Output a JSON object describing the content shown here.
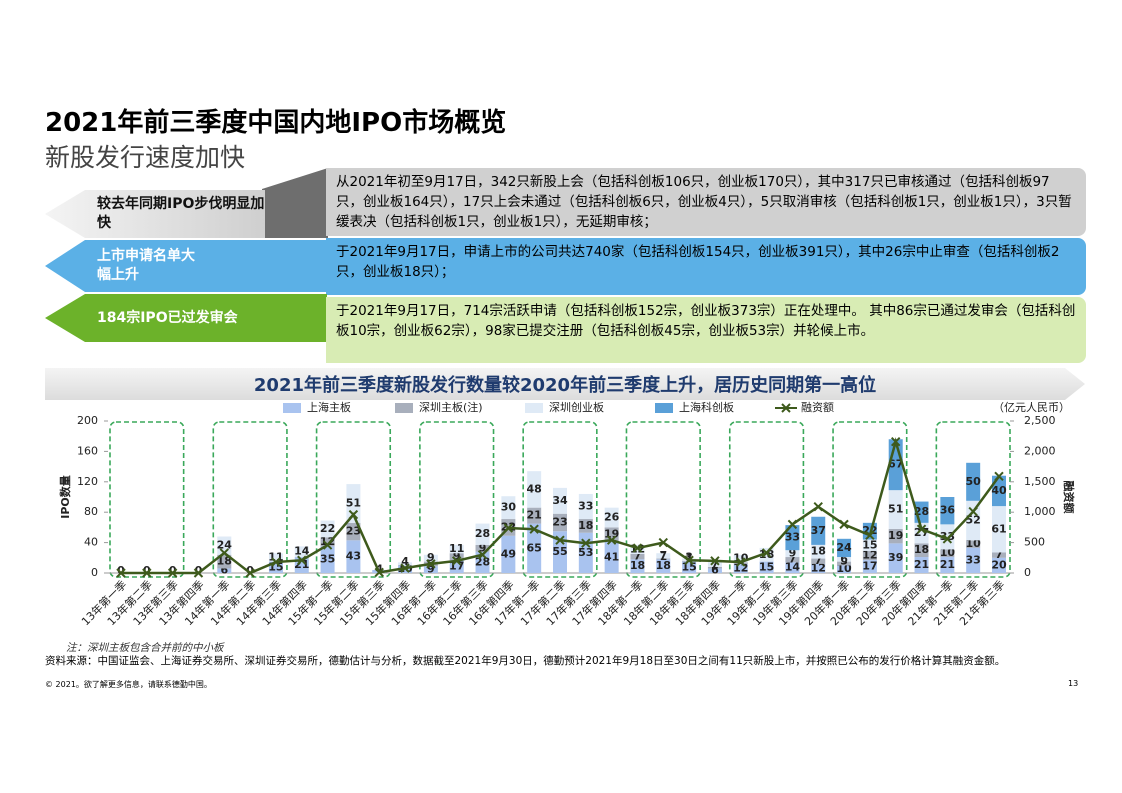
{
  "header": {
    "title": "2021年前三季度中国内地IPO市场概览",
    "subtitle": "新股发行速度加快"
  },
  "highlights": [
    {
      "label": "较去年同期IPO步伐明显加快",
      "text": "从2021年初至9月17日，342只新股上会（包括科创板106只，创业板170只），其中317只已审核通过（包括科创板97只，创业板164只），17只上会未通过（包括科创板6只，创业板4只），5只取消审核（包括科创板1只，创业板1只），3只暂缓表决（包括科创板1只，创业板1只），无延期审核；"
    },
    {
      "label": "上市申请名单大幅上升",
      "text": "于2021年9月17日，申请上市的公司共达740家（包括科创板154只，创业板391只），其中26宗中止审查（包括科创板2只，创业板18只）；"
    },
    {
      "label": "184宗IPO已过发审会",
      "text": "于2021年9月17日，714宗活跃申请（包括科创板152宗，创业板373宗）正在处理中。 其中86宗已通过发审会（包括科创板10宗，创业板62宗），98家已提交注册（包括科创板45宗，创业板53宗）并轮候上市。"
    }
  ],
  "chart_data": {
    "type": "bar",
    "stacked": true,
    "title": "2021年前三季度新股发行数量较2020年前三季度上升，居历史同期第一高位",
    "ylabel": "IPO数量",
    "y2label": "融资额",
    "y2unit": "（亿元人民币）",
    "categories": [
      "13年第一季",
      "13年第二季",
      "13年第三季",
      "13年第四季",
      "14年第一季",
      "14年第二季",
      "14年第三季",
      "14年第四季",
      "15年第一季",
      "15年第二季",
      "15年第三季",
      "15年第四季",
      "16年第一季",
      "16年第二季",
      "16年第三季",
      "16年第四季",
      "17年第一季",
      "17年第二季",
      "17年第三季",
      "17年第四季",
      "18年第一季",
      "18年第二季",
      "18年第三季",
      "18年第四季",
      "19年第一季",
      "19年第二季",
      "19年第三季",
      "19年第四季",
      "20年第一季",
      "20年第二季",
      "20年第三季",
      "20年第四季",
      "21年第一季",
      "21年第二季",
      "21年第三季"
    ],
    "series": [
      {
        "name": "上海主板",
        "type": "bar",
        "color": "#a9c3ef",
        "values": [
          0,
          0,
          0,
          0,
          6,
          0,
          15,
          21,
          35,
          43,
          4,
          10,
          9,
          17,
          28,
          49,
          65,
          55,
          53,
          41,
          18,
          18,
          15,
          6,
          12,
          15,
          14,
          12,
          10,
          17,
          39,
          21,
          21,
          33,
          20
        ]
      },
      {
        "name": "深圳主板(注)",
        "type": "bar",
        "color": "#a8afbc",
        "values": [
          0,
          0,
          0,
          0,
          18,
          0,
          0,
          0,
          12,
          23,
          0,
          0,
          6,
          9,
          9,
          22,
          21,
          23,
          18,
          19,
          7,
          1,
          1,
          2,
          2,
          0,
          7,
          7,
          5,
          12,
          19,
          18,
          10,
          10,
          7
        ]
      },
      {
        "name": "深圳创业板",
        "type": "bar",
        "color": "#dfeaf6",
        "values": [
          0,
          0,
          0,
          0,
          24,
          0,
          11,
          14,
          22,
          51,
          0,
          4,
          9,
          11,
          28,
          30,
          48,
          34,
          33,
          26,
          12,
          7,
          3,
          7,
          10,
          18,
          9,
          18,
          6,
          15,
          51,
          27,
          33,
          52,
          61
        ]
      },
      {
        "name": "上海科创板",
        "type": "bar",
        "color": "#5aa0d8",
        "values": [
          0,
          0,
          0,
          0,
          0,
          0,
          0,
          0,
          0,
          0,
          0,
          0,
          0,
          0,
          0,
          0,
          0,
          0,
          0,
          0,
          0,
          0,
          0,
          0,
          0,
          0,
          33,
          37,
          24,
          22,
          67,
          28,
          36,
          50,
          40
        ]
      },
      {
        "name": "融资额",
        "type": "line",
        "axis": "y2",
        "color": "#3e5a1c",
        "values": [
          0,
          0,
          0,
          0,
          330,
          0,
          180,
          210,
          460,
          960,
          10,
          80,
          150,
          200,
          300,
          740,
          720,
          540,
          490,
          540,
          410,
          500,
          210,
          200,
          180,
          330,
          800,
          1090,
          800,
          620,
          2160,
          720,
          560,
          1010,
          1590
        ]
      }
    ],
    "ylim": [
      0,
      200
    ],
    "yticks": [
      0,
      40,
      80,
      120,
      160,
      200
    ],
    "y2lim": [
      0,
      2500
    ],
    "y2ticks": [
      0,
      500,
      {
        "value": 1000,
        "label": "1,000"
      },
      {
        "value": 1500,
        "label": "1,500"
      },
      {
        "value": 2000,
        "label": "2,000"
      },
      {
        "value": 2500,
        "label": "2,500"
      }
    ]
  },
  "footer": {
    "note": "注：深圳主板包含合并前的中小板",
    "source": "资料来源：中国证监会、上海证券交易所、深圳证券交易所，德勤估计与分析，数据截至2021年9月30日，德勤预计2021年9月18日至30日之间有11只新股上市，并按照已公布的发行价格计算其融资金额。",
    "copyright": "© 2021。欲了解更多信息，请联系德勤中国。",
    "page": "13"
  }
}
